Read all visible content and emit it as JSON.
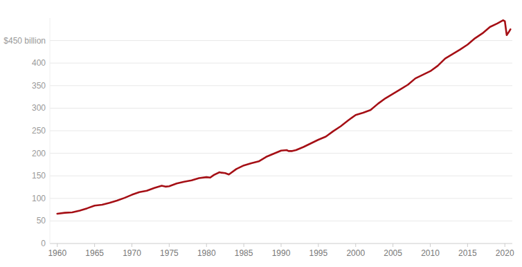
{
  "chart_data": {
    "type": "line",
    "color": "#a50f15",
    "grid": true,
    "x": [
      1960,
      1961,
      1962,
      1963,
      1964,
      1965,
      1966,
      1967,
      1968,
      1969,
      1970,
      1971,
      1972,
      1973,
      1974,
      1974.5,
      1975,
      1975.5,
      1976,
      1977,
      1978,
      1979,
      1980,
      1980.5,
      1981,
      1981.75,
      1982,
      1982.5,
      1983,
      1984,
      1985,
      1986,
      1987,
      1988,
      1989,
      1990,
      1990.75,
      1991,
      1991.5,
      1992,
      1993,
      1994,
      1995,
      1996,
      1997,
      1998,
      1999,
      2000,
      2001,
      2002,
      2003,
      2004,
      2005,
      2006,
      2007,
      2008,
      2009,
      2010,
      2011,
      2012,
      2013,
      2014,
      2015,
      2016,
      2017,
      2018,
      2019,
      2019.75,
      2020,
      2020.25,
      2020.5,
      2020.75
    ],
    "values": [
      66,
      68,
      69,
      73,
      78,
      84,
      86,
      90,
      95,
      101,
      108,
      114,
      117,
      123,
      128,
      126,
      127,
      130,
      133,
      137,
      140,
      145,
      147,
      146,
      152,
      158,
      157,
      156,
      153,
      165,
      173,
      178,
      182,
      192,
      199,
      206,
      207,
      205,
      205,
      207,
      214,
      222,
      230,
      237,
      249,
      260,
      273,
      285,
      290,
      296,
      310,
      322,
      332,
      342,
      352,
      366,
      374,
      382,
      394,
      410,
      420,
      430,
      441,
      455,
      466,
      480,
      488,
      495,
      493,
      462,
      468,
      475
    ],
    "xlim": [
      1959,
      2021
    ],
    "xticks": [
      1960,
      1965,
      1970,
      1975,
      1980,
      1985,
      1990,
      1995,
      2000,
      2005,
      2010,
      2015,
      2020
    ],
    "ylim": [
      0,
      500
    ],
    "yticks": [
      0,
      50,
      100,
      150,
      200,
      250,
      300,
      350,
      400,
      {
        "value": 450,
        "label": "$450 billion"
      }
    ]
  }
}
